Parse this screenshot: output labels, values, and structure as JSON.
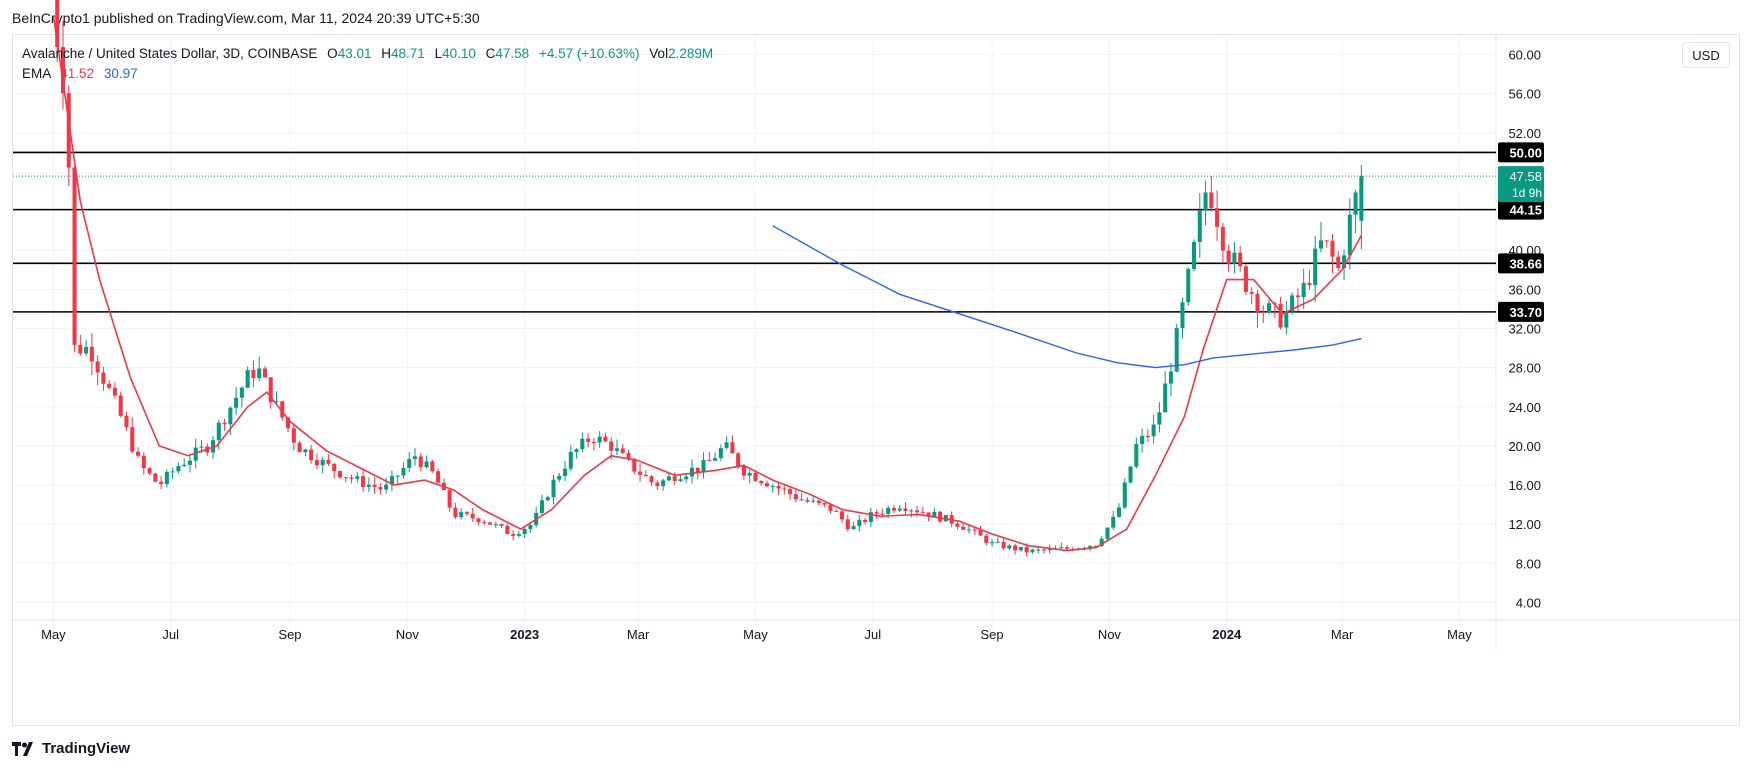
{
  "header": {
    "publish_line": "BeInCrypto1 published on TradingView.com, Mar 11, 2024 20:39 UTC+5:30"
  },
  "legend": {
    "symbol": "Avalanche / United States Dollar, 3D, COINBASE",
    "open_label": "O",
    "open": "43.01",
    "high_label": "H",
    "high": "48.71",
    "low_label": "L",
    "low": "40.10",
    "close_label": "C",
    "close": "47.58",
    "change": "+4.57 (+10.63%)",
    "vol_label": "Vol",
    "volume": "2.289M",
    "ema_label": "EMA",
    "ema_fast": "41.52",
    "ema_slow": "30.97"
  },
  "toolbar": {
    "currency": "USD"
  },
  "price_badges": {
    "last_price": "47.58",
    "countdown": "1d 9h"
  },
  "footer": {
    "brand": "TradingView"
  },
  "colors": {
    "up": "#089981",
    "down": "#f23645",
    "ema_fast": "#f23645",
    "ema_slow": "#2962ff",
    "level_line": "#000000",
    "grid": "#f0f3fa"
  },
  "chart_data": {
    "type": "candlestick",
    "interval": "3D",
    "y_axis": {
      "range": [
        2,
        62
      ],
      "ticks": [
        "4.00",
        "8.00",
        "12.00",
        "16.00",
        "20.00",
        "24.00",
        "28.00",
        "32.00",
        "36.00",
        "40.00",
        "52.00",
        "56.00",
        "60.00"
      ]
    },
    "x_axis": {
      "range": [
        "2022-04-10",
        "2024-05-20"
      ],
      "ticks": [
        {
          "label": "May",
          "date": "2022-05-01",
          "bold": false
        },
        {
          "label": "Jul",
          "date": "2022-07-01",
          "bold": false
        },
        {
          "label": "Sep",
          "date": "2022-09-01",
          "bold": false
        },
        {
          "label": "Nov",
          "date": "2022-11-01",
          "bold": false
        },
        {
          "label": "2023",
          "date": "2023-01-01",
          "bold": true
        },
        {
          "label": "Mar",
          "date": "2023-03-01",
          "bold": false
        },
        {
          "label": "May",
          "date": "2023-05-01",
          "bold": false
        },
        {
          "label": "Jul",
          "date": "2023-07-01",
          "bold": false
        },
        {
          "label": "Sep",
          "date": "2023-09-01",
          "bold": false
        },
        {
          "label": "Nov",
          "date": "2023-11-01",
          "bold": false
        },
        {
          "label": "2024",
          "date": "2024-01-01",
          "bold": true
        },
        {
          "label": "Mar",
          "date": "2024-03-01",
          "bold": false
        },
        {
          "label": "May",
          "date": "2024-05-01",
          "bold": false
        }
      ]
    },
    "horizontal_levels": [
      "50.00",
      "44.15",
      "38.66",
      "33.70"
    ],
    "last_price": 47.58,
    "series_close_path": [
      [
        "2022-04-30",
        66
      ],
      [
        "2022-05-08",
        55
      ],
      [
        "2022-05-12",
        30
      ],
      [
        "2022-05-20",
        30
      ],
      [
        "2022-06-05",
        23
      ],
      [
        "2022-06-15",
        18
      ],
      [
        "2022-06-25",
        16
      ],
      [
        "2022-07-05",
        18
      ],
      [
        "2022-07-20",
        20
      ],
      [
        "2022-08-01",
        24
      ],
      [
        "2022-08-10",
        27
      ],
      [
        "2022-08-15",
        28
      ],
      [
        "2022-08-25",
        24
      ],
      [
        "2022-09-05",
        20
      ],
      [
        "2022-09-20",
        18
      ],
      [
        "2022-10-05",
        16.5
      ],
      [
        "2022-10-20",
        15.5
      ],
      [
        "2022-11-05",
        19
      ],
      [
        "2022-11-15",
        17
      ],
      [
        "2022-11-25",
        13
      ],
      [
        "2022-12-10",
        12.5
      ],
      [
        "2022-12-25",
        11
      ],
      [
        "2023-01-05",
        12
      ],
      [
        "2023-01-15",
        16
      ],
      [
        "2023-01-25",
        19
      ],
      [
        "2023-02-05",
        21
      ],
      [
        "2023-02-15",
        20
      ],
      [
        "2023-02-25",
        18
      ],
      [
        "2023-03-10",
        16
      ],
      [
        "2023-03-20",
        17
      ],
      [
        "2023-04-05",
        18
      ],
      [
        "2023-04-15",
        20
      ],
      [
        "2023-04-25",
        17.5
      ],
      [
        "2023-05-10",
        16
      ],
      [
        "2023-05-25",
        14.5
      ],
      [
        "2023-06-10",
        13.5
      ],
      [
        "2023-06-20",
        11.5
      ],
      [
        "2023-07-01",
        13
      ],
      [
        "2023-07-15",
        14
      ],
      [
        "2023-08-01",
        13
      ],
      [
        "2023-08-15",
        12
      ],
      [
        "2023-09-01",
        10
      ],
      [
        "2023-09-20",
        9.2
      ],
      [
        "2023-10-10",
        9.5
      ],
      [
        "2023-10-25",
        10
      ],
      [
        "2023-11-05",
        13
      ],
      [
        "2023-11-15",
        20
      ],
      [
        "2023-11-25",
        22
      ],
      [
        "2023-12-05",
        30
      ],
      [
        "2023-12-15",
        40
      ],
      [
        "2023-12-22",
        47
      ],
      [
        "2024-01-01",
        40
      ],
      [
        "2024-01-10",
        37
      ],
      [
        "2024-01-20",
        34
      ],
      [
        "2024-01-30",
        33
      ],
      [
        "2024-02-10",
        36
      ],
      [
        "2024-02-20",
        41
      ],
      [
        "2024-02-28",
        38
      ],
      [
        "2024-03-05",
        43
      ],
      [
        "2024-03-11",
        47.58
      ]
    ],
    "ema_fast_path": [
      [
        "2022-05-01",
        64
      ],
      [
        "2022-05-15",
        45
      ],
      [
        "2022-05-25",
        37
      ],
      [
        "2022-06-10",
        27
      ],
      [
        "2022-06-25",
        20
      ],
      [
        "2022-07-10",
        19
      ],
      [
        "2022-07-25",
        20
      ],
      [
        "2022-08-10",
        24
      ],
      [
        "2022-08-20",
        25.5
      ],
      [
        "2022-09-01",
        22.5
      ],
      [
        "2022-09-20",
        19.5
      ],
      [
        "2022-10-10",
        17.5
      ],
      [
        "2022-10-25",
        16
      ],
      [
        "2022-11-10",
        16.5
      ],
      [
        "2022-11-25",
        15.5
      ],
      [
        "2022-12-10",
        13.5
      ],
      [
        "2022-12-30",
        11.5
      ],
      [
        "2023-01-15",
        13.5
      ],
      [
        "2023-02-01",
        17
      ],
      [
        "2023-02-15",
        19
      ],
      [
        "2023-03-01",
        18.5
      ],
      [
        "2023-03-20",
        17
      ],
      [
        "2023-04-10",
        17.5
      ],
      [
        "2023-04-25",
        18
      ],
      [
        "2023-05-10",
        16.5
      ],
      [
        "2023-05-30",
        15
      ],
      [
        "2023-06-15",
        13.5
      ],
      [
        "2023-07-05",
        12.8
      ],
      [
        "2023-07-25",
        13
      ],
      [
        "2023-08-15",
        12.3
      ],
      [
        "2023-09-01",
        11
      ],
      [
        "2023-09-20",
        9.8
      ],
      [
        "2023-10-10",
        9.3
      ],
      [
        "2023-10-25",
        9.6
      ],
      [
        "2023-11-10",
        11.5
      ],
      [
        "2023-11-25",
        17
      ],
      [
        "2023-12-10",
        23
      ],
      [
        "2023-12-20",
        30
      ],
      [
        "2024-01-01",
        37
      ],
      [
        "2024-01-15",
        37
      ],
      [
        "2024-01-30",
        33.5
      ],
      [
        "2024-02-15",
        35
      ],
      [
        "2024-03-01",
        38
      ],
      [
        "2024-03-11",
        41.52
      ]
    ],
    "ema_slow_path": [
      [
        "2023-05-10",
        42.5
      ],
      [
        "2023-06-15",
        38.5
      ],
      [
        "2023-07-15",
        35.5
      ],
      [
        "2023-08-15",
        33.5
      ],
      [
        "2023-09-15",
        31.5
      ],
      [
        "2023-10-15",
        29.5
      ],
      [
        "2023-11-05",
        28.5
      ],
      [
        "2023-11-25",
        28
      ],
      [
        "2023-12-10",
        28.3
      ],
      [
        "2023-12-25",
        29
      ],
      [
        "2024-01-15",
        29.4
      ],
      [
        "2024-02-05",
        29.8
      ],
      [
        "2024-02-25",
        30.3
      ],
      [
        "2024-03-11",
        30.97
      ]
    ]
  }
}
